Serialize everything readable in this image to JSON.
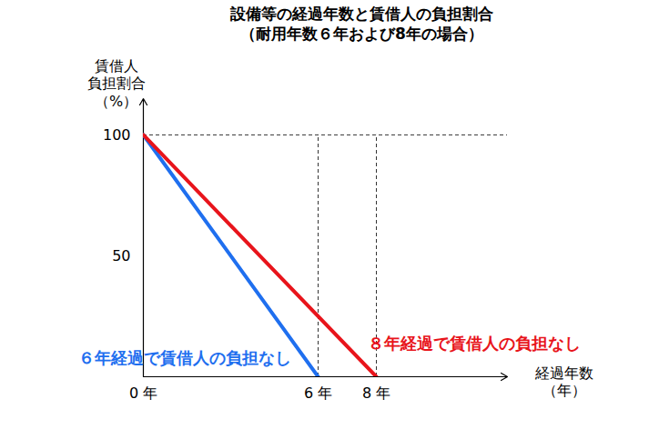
{
  "chart_data": {
    "type": "line",
    "title": "設備等の経過年数と賃借人の負担割合",
    "subtitle": "（耐用年数６年および8年の場合）",
    "x_label": "経過年数\n（年）",
    "y_label": "賃借人\n負担割合\n（%）",
    "xlim": [
      0,
      12.5
    ],
    "xticks": [
      {
        "value": 0,
        "label": "0 年"
      },
      {
        "value": 6,
        "label": "6 年"
      },
      {
        "value": 8,
        "label": "8 年"
      }
    ],
    "ylim": [
      0,
      115
    ],
    "yticks": [
      50,
      100
    ],
    "grid": false,
    "series": [
      {
        "x": [
          0,
          6
        ],
        "values": [
          100,
          0
        ],
        "color": "#1f6fef",
        "annotation": "６年経過で賃借人の負担なし"
      },
      {
        "x": [
          0,
          8
        ],
        "values": [
          100,
          0
        ],
        "color": "#e8141b",
        "annotation": "８年経過で賃借人の負担なし"
      }
    ]
  }
}
